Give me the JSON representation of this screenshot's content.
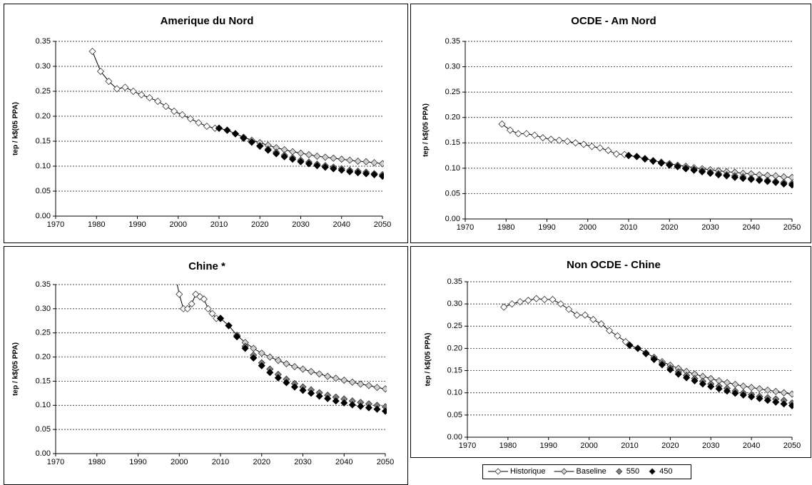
{
  "chart_data": [
    {
      "type": "line",
      "title": "Amerique du Nord",
      "y_label": "tep / k$(05 PPA)",
      "grid": true,
      "xlim": [
        1970,
        2050
      ],
      "xticks": [
        1970,
        1980,
        1990,
        2000,
        2010,
        2020,
        2030,
        2040,
        2050
      ],
      "ylim": [
        0,
        0.35
      ],
      "yticks": [
        {
          "value": 0,
          "label": "0.00"
        },
        {
          "value": 0.05,
          "label": "0.05"
        },
        {
          "value": 0.1,
          "label": "0.10"
        },
        {
          "value": 0.15,
          "label": "0.15"
        },
        {
          "value": 0.2,
          "label": "0.20"
        },
        {
          "value": 0.25,
          "label": "0.25"
        },
        {
          "value": 0.3,
          "label": "0.30"
        },
        {
          "value": 0.35,
          "label": "0.35"
        }
      ],
      "series": [
        {
          "name": "Historique",
          "color": "#ffffff",
          "line": true,
          "x": [
            1979,
            1981,
            1983,
            1985,
            1987,
            1989,
            1991,
            1993,
            1995,
            1997,
            1999,
            2001,
            2003,
            2005,
            2007,
            2009
          ],
          "values": [
            0.33,
            0.29,
            0.27,
            0.255,
            0.258,
            0.25,
            0.243,
            0.237,
            0.23,
            0.22,
            0.21,
            0.203,
            0.195,
            0.187,
            0.18,
            0.176
          ]
        },
        {
          "name": "Baseline",
          "color": "#d0d0d0",
          "line": true,
          "x": [
            2010,
            2012,
            2014,
            2016,
            2018,
            2020,
            2022,
            2024,
            2026,
            2028,
            2030,
            2032,
            2034,
            2036,
            2038,
            2040,
            2042,
            2044,
            2046,
            2048,
            2050
          ],
          "values": [
            0.176,
            0.172,
            0.165,
            0.158,
            0.152,
            0.147,
            0.142,
            0.137,
            0.133,
            0.129,
            0.126,
            0.123,
            0.12,
            0.118,
            0.116,
            0.114,
            0.112,
            0.11,
            0.109,
            0.107,
            0.105
          ]
        },
        {
          "name": "550",
          "color": "#808080",
          "line": false,
          "x": [
            2010,
            2012,
            2014,
            2016,
            2018,
            2020,
            2022,
            2024,
            2026,
            2028,
            2030,
            2032,
            2034,
            2036,
            2038,
            2040,
            2042,
            2044,
            2046,
            2048,
            2050
          ],
          "values": [
            0.176,
            0.172,
            0.165,
            0.157,
            0.149,
            0.141,
            0.134,
            0.128,
            0.122,
            0.117,
            0.112,
            0.108,
            0.104,
            0.101,
            0.098,
            0.095,
            0.092,
            0.09,
            0.088,
            0.085,
            0.083
          ]
        },
        {
          "name": "450",
          "color": "#000000",
          "line": false,
          "x": [
            2010,
            2012,
            2014,
            2016,
            2018,
            2020,
            2022,
            2024,
            2026,
            2028,
            2030,
            2032,
            2034,
            2036,
            2038,
            2040,
            2042,
            2044,
            2046,
            2048,
            2050
          ],
          "values": [
            0.176,
            0.172,
            0.165,
            0.156,
            0.148,
            0.14,
            0.132,
            0.125,
            0.119,
            0.114,
            0.109,
            0.105,
            0.101,
            0.098,
            0.095,
            0.092,
            0.089,
            0.087,
            0.085,
            0.083,
            0.08
          ]
        }
      ]
    },
    {
      "type": "line",
      "title": "OCDE - Am Nord",
      "y_label": "tep / k$(05 PPA)",
      "grid": true,
      "xlim": [
        1970,
        2050
      ],
      "xticks": [
        1970,
        1980,
        1990,
        2000,
        2010,
        2020,
        2030,
        2040,
        2050
      ],
      "ylim": [
        0,
        0.35
      ],
      "yticks": [
        {
          "value": 0,
          "label": "0.00"
        },
        {
          "value": 0.05,
          "label": "0.05"
        },
        {
          "value": 0.1,
          "label": "0.10"
        },
        {
          "value": 0.15,
          "label": "0.15"
        },
        {
          "value": 0.2,
          "label": "0.20"
        },
        {
          "value": 0.25,
          "label": "0.25"
        },
        {
          "value": 0.3,
          "label": "0.30"
        },
        {
          "value": 0.35,
          "label": "0.35"
        }
      ],
      "series": [
        {
          "name": "Historique",
          "color": "#ffffff",
          "line": true,
          "x": [
            1979,
            1981,
            1983,
            1985,
            1987,
            1989,
            1991,
            1993,
            1995,
            1997,
            1999,
            2001,
            2003,
            2005,
            2007,
            2009
          ],
          "values": [
            0.187,
            0.175,
            0.168,
            0.168,
            0.165,
            0.16,
            0.157,
            0.155,
            0.153,
            0.15,
            0.147,
            0.143,
            0.14,
            0.135,
            0.128,
            0.127
          ]
        },
        {
          "name": "Baseline",
          "color": "#d0d0d0",
          "line": true,
          "x": [
            2010,
            2012,
            2014,
            2016,
            2018,
            2020,
            2022,
            2024,
            2026,
            2028,
            2030,
            2032,
            2034,
            2036,
            2038,
            2040,
            2042,
            2044,
            2046,
            2048,
            2050
          ],
          "values": [
            0.125,
            0.123,
            0.119,
            0.115,
            0.112,
            0.109,
            0.106,
            0.104,
            0.101,
            0.099,
            0.097,
            0.095,
            0.093,
            0.092,
            0.09,
            0.089,
            0.087,
            0.086,
            0.085,
            0.083,
            0.082
          ]
        },
        {
          "name": "550",
          "color": "#808080",
          "line": false,
          "x": [
            2010,
            2012,
            2014,
            2016,
            2018,
            2020,
            2022,
            2024,
            2026,
            2028,
            2030,
            2032,
            2034,
            2036,
            2038,
            2040,
            2042,
            2044,
            2046,
            2048,
            2050
          ],
          "values": [
            0.125,
            0.123,
            0.119,
            0.114,
            0.111,
            0.107,
            0.104,
            0.101,
            0.098,
            0.095,
            0.092,
            0.089,
            0.087,
            0.085,
            0.083,
            0.08,
            0.078,
            0.076,
            0.074,
            0.072,
            0.07
          ]
        },
        {
          "name": "450",
          "color": "#000000",
          "line": false,
          "x": [
            2010,
            2012,
            2014,
            2016,
            2018,
            2020,
            2022,
            2024,
            2026,
            2028,
            2030,
            2032,
            2034,
            2036,
            2038,
            2040,
            2042,
            2044,
            2046,
            2048,
            2050
          ],
          "values": [
            0.125,
            0.123,
            0.118,
            0.114,
            0.11,
            0.106,
            0.103,
            0.099,
            0.096,
            0.093,
            0.09,
            0.087,
            0.085,
            0.082,
            0.08,
            0.078,
            0.076,
            0.074,
            0.072,
            0.069,
            0.067
          ]
        }
      ]
    },
    {
      "type": "line",
      "title": "Chine *",
      "y_label": "tep / k$(05 PPA)",
      "grid": true,
      "xlim": [
        1970,
        2050
      ],
      "xticks": [
        1970,
        1980,
        1990,
        2000,
        2010,
        2020,
        2030,
        2040,
        2050
      ],
      "ylim": [
        0,
        0.35
      ],
      "yticks": [
        {
          "value": 0,
          "label": "0.00"
        },
        {
          "value": 0.05,
          "label": "0.05"
        },
        {
          "value": 0.1,
          "label": "0.10"
        },
        {
          "value": 0.15,
          "label": "0.15"
        },
        {
          "value": 0.2,
          "label": "0.20"
        },
        {
          "value": 0.25,
          "label": "0.25"
        },
        {
          "value": 0.3,
          "label": "0.30"
        },
        {
          "value": 0.35,
          "label": "0.35"
        }
      ],
      "series": [
        {
          "name": "Historique",
          "color": "#ffffff",
          "line": true,
          "x": [
            1999,
            2000,
            2001,
            2002,
            2003,
            2004,
            2005,
            2006,
            2007,
            2008,
            2009
          ],
          "values": [
            0.37,
            0.33,
            0.3,
            0.3,
            0.31,
            0.33,
            0.325,
            0.32,
            0.3,
            0.29,
            0.28
          ]
        },
        {
          "name": "Baseline",
          "color": "#d0d0d0",
          "line": true,
          "x": [
            2010,
            2012,
            2014,
            2016,
            2018,
            2020,
            2022,
            2024,
            2026,
            2028,
            2030,
            2032,
            2034,
            2036,
            2038,
            2040,
            2042,
            2044,
            2046,
            2048,
            2050
          ],
          "values": [
            0.28,
            0.265,
            0.245,
            0.23,
            0.218,
            0.208,
            0.2,
            0.193,
            0.186,
            0.18,
            0.175,
            0.17,
            0.165,
            0.16,
            0.156,
            0.152,
            0.148,
            0.144,
            0.141,
            0.137,
            0.134
          ]
        },
        {
          "name": "550",
          "color": "#808080",
          "line": false,
          "x": [
            2010,
            2012,
            2014,
            2016,
            2018,
            2020,
            2022,
            2024,
            2026,
            2028,
            2030,
            2032,
            2034,
            2036,
            2038,
            2040,
            2042,
            2044,
            2046,
            2048,
            2050
          ],
          "values": [
            0.28,
            0.265,
            0.243,
            0.222,
            0.204,
            0.188,
            0.175,
            0.164,
            0.154,
            0.145,
            0.138,
            0.132,
            0.126,
            0.121,
            0.117,
            0.113,
            0.109,
            0.106,
            0.103,
            0.1,
            0.097
          ]
        },
        {
          "name": "450",
          "color": "#000000",
          "line": false,
          "x": [
            2010,
            2012,
            2014,
            2016,
            2018,
            2020,
            2022,
            2024,
            2026,
            2028,
            2030,
            2032,
            2034,
            2036,
            2038,
            2040,
            2042,
            2044,
            2046,
            2048,
            2050
          ],
          "values": [
            0.28,
            0.265,
            0.242,
            0.218,
            0.198,
            0.182,
            0.168,
            0.157,
            0.147,
            0.138,
            0.131,
            0.125,
            0.119,
            0.114,
            0.109,
            0.105,
            0.101,
            0.098,
            0.095,
            0.092,
            0.088
          ]
        }
      ]
    },
    {
      "type": "line",
      "title": "Non OCDE - Chine",
      "y_label": "tep / k$(05 PPA)",
      "grid": true,
      "legend": "bottom",
      "xlim": [
        1970,
        2050
      ],
      "xticks": [
        1970,
        1980,
        1990,
        2000,
        2010,
        2020,
        2030,
        2040,
        2050
      ],
      "ylim": [
        0,
        0.35
      ],
      "yticks": [
        {
          "value": 0,
          "label": "0.00"
        },
        {
          "value": 0.05,
          "label": "0.05"
        },
        {
          "value": 0.1,
          "label": "0.10"
        },
        {
          "value": 0.15,
          "label": "0.15"
        },
        {
          "value": 0.2,
          "label": "0.20"
        },
        {
          "value": 0.25,
          "label": "0.25"
        },
        {
          "value": 0.3,
          "label": "0.30"
        },
        {
          "value": 0.35,
          "label": "0.35"
        }
      ],
      "series": [
        {
          "name": "Historique",
          "color": "#ffffff",
          "line": true,
          "x": [
            1979,
            1981,
            1983,
            1985,
            1987,
            1989,
            1991,
            1993,
            1995,
            1997,
            1999,
            2001,
            2003,
            2005,
            2007,
            2009
          ],
          "values": [
            0.293,
            0.3,
            0.305,
            0.308,
            0.312,
            0.31,
            0.31,
            0.3,
            0.288,
            0.275,
            0.275,
            0.265,
            0.255,
            0.24,
            0.228,
            0.215
          ]
        },
        {
          "name": "Baseline",
          "color": "#d0d0d0",
          "line": true,
          "x": [
            2010,
            2012,
            2014,
            2016,
            2018,
            2020,
            2022,
            2024,
            2026,
            2028,
            2030,
            2032,
            2034,
            2036,
            2038,
            2040,
            2042,
            2044,
            2046,
            2048,
            2050
          ],
          "values": [
            0.207,
            0.2,
            0.19,
            0.18,
            0.17,
            0.162,
            0.155,
            0.148,
            0.142,
            0.137,
            0.132,
            0.127,
            0.123,
            0.119,
            0.115,
            0.112,
            0.109,
            0.106,
            0.103,
            0.1,
            0.097
          ]
        },
        {
          "name": "550",
          "color": "#808080",
          "line": false,
          "x": [
            2010,
            2012,
            2014,
            2016,
            2018,
            2020,
            2022,
            2024,
            2026,
            2028,
            2030,
            2032,
            2034,
            2036,
            2038,
            2040,
            2042,
            2044,
            2046,
            2048,
            2050
          ],
          "values": [
            0.207,
            0.2,
            0.189,
            0.177,
            0.166,
            0.156,
            0.147,
            0.139,
            0.132,
            0.126,
            0.12,
            0.115,
            0.11,
            0.104,
            0.1,
            0.096,
            0.092,
            0.089,
            0.086,
            0.083,
            0.077
          ]
        },
        {
          "name": "450",
          "color": "#000000",
          "line": false,
          "x": [
            2010,
            2012,
            2014,
            2016,
            2018,
            2020,
            2022,
            2024,
            2026,
            2028,
            2030,
            2032,
            2034,
            2036,
            2038,
            2040,
            2042,
            2044,
            2046,
            2048,
            2050
          ],
          "values": [
            0.207,
            0.2,
            0.188,
            0.175,
            0.163,
            0.152,
            0.142,
            0.134,
            0.127,
            0.12,
            0.114,
            0.109,
            0.104,
            0.099,
            0.095,
            0.091,
            0.087,
            0.083,
            0.079,
            0.075,
            0.071
          ]
        }
      ]
    }
  ]
}
